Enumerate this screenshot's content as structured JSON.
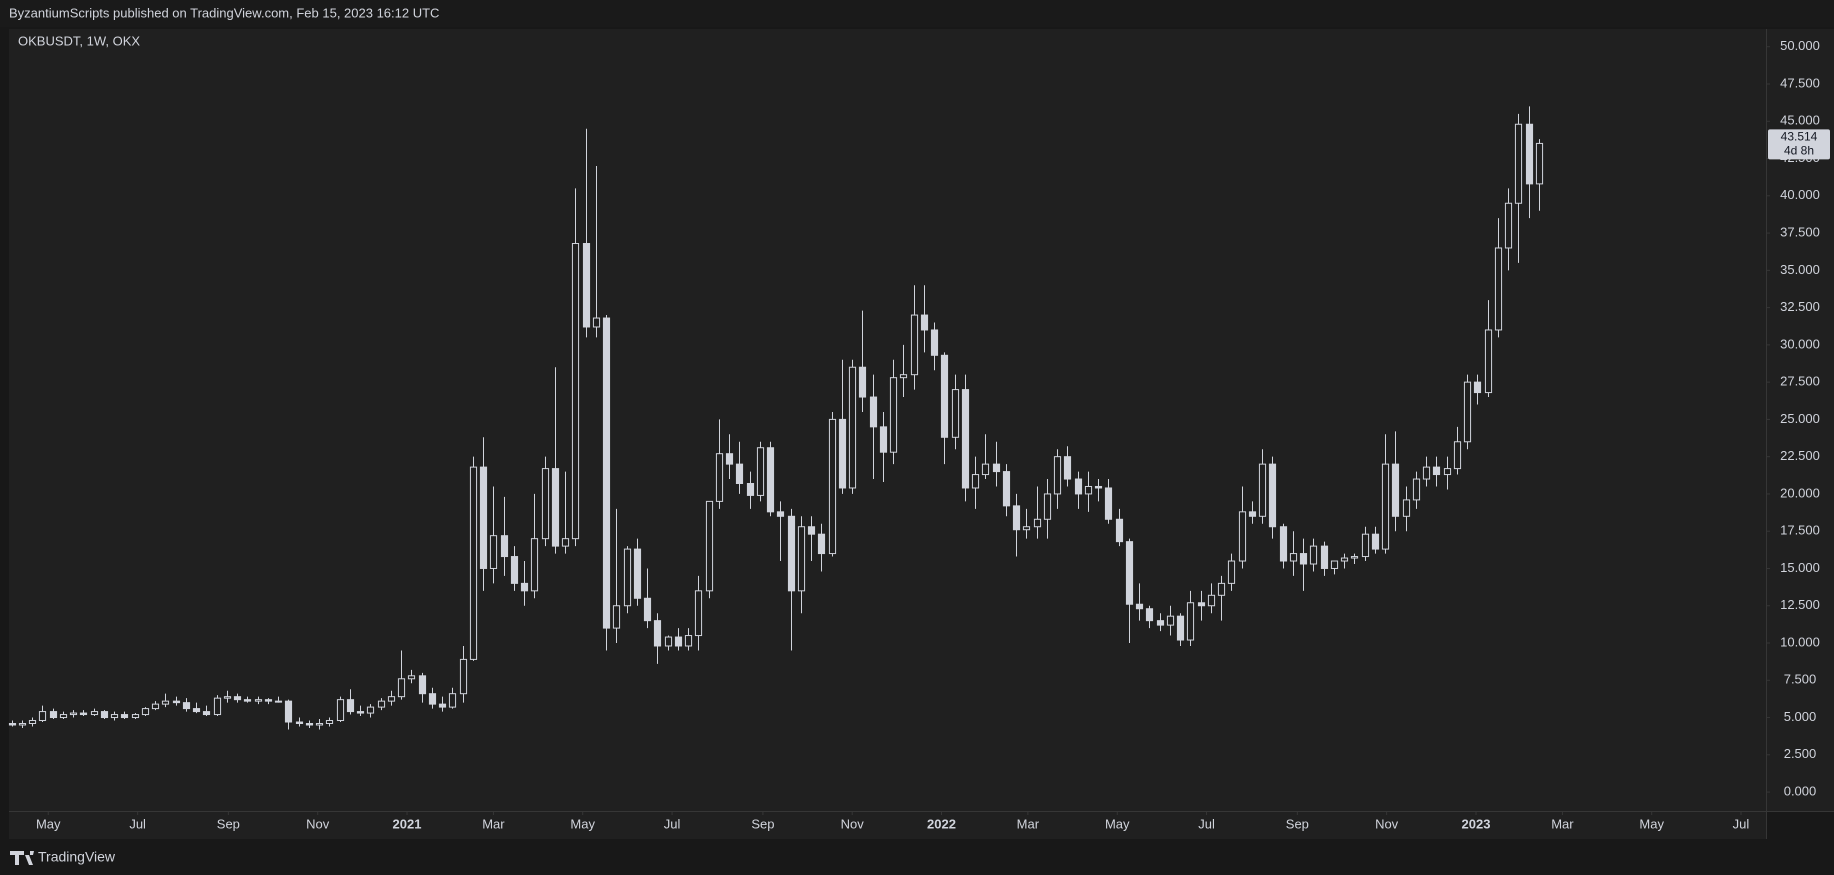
{
  "header": {
    "text": "ByzantiumScripts published on TradingView.com, Feb 15, 2023 16:12 UTC"
  },
  "footer": {
    "brand": "TradingView"
  },
  "chart_data": {
    "type": "candlestick",
    "symbol_label": "OKBUSDT, 1W, OKX",
    "up_color": "#d1d4dc",
    "down_color": "#d1d4dc",
    "hollow_up": true,
    "ylim": [
      -1.27,
      51.19
    ],
    "yticks": [
      {
        "value": 0,
        "label": "0.000"
      },
      {
        "value": 2.5,
        "label": "2.500"
      },
      {
        "value": 5,
        "label": "5.000"
      },
      {
        "value": 7.5,
        "label": "7.500"
      },
      {
        "value": 10,
        "label": "10.000"
      },
      {
        "value": 12.5,
        "label": "12.500"
      },
      {
        "value": 15,
        "label": "15.000"
      },
      {
        "value": 17.5,
        "label": "17.500"
      },
      {
        "value": 20,
        "label": "20.000"
      },
      {
        "value": 22.5,
        "label": "22.500"
      },
      {
        "value": 25,
        "label": "25.000"
      },
      {
        "value": 27.5,
        "label": "27.500"
      },
      {
        "value": 30,
        "label": "30.000"
      },
      {
        "value": 32.5,
        "label": "32.500"
      },
      {
        "value": 35,
        "label": "35.000"
      },
      {
        "value": 37.5,
        "label": "37.500"
      },
      {
        "value": 40,
        "label": "40.000"
      },
      {
        "value": 42.5,
        "label": "42.500"
      },
      {
        "value": 45,
        "label": "45.000"
      },
      {
        "value": 47.5,
        "label": "47.500"
      },
      {
        "value": 50,
        "label": "50.000"
      }
    ],
    "xlim": [
      -0.26,
      171.15
    ],
    "xticks": [
      {
        "value": 3.57,
        "label": "May"
      },
      {
        "value": 12.29,
        "label": "Jul"
      },
      {
        "value": 21.14,
        "label": "Sep"
      },
      {
        "value": 29.86,
        "label": "Nov"
      },
      {
        "value": 38.57,
        "label": "2021"
      },
      {
        "value": 47.0,
        "label": "Mar"
      },
      {
        "value": 55.71,
        "label": "May"
      },
      {
        "value": 64.43,
        "label": "Jul"
      },
      {
        "value": 73.29,
        "label": "Sep"
      },
      {
        "value": 82.0,
        "label": "Nov"
      },
      {
        "value": 90.71,
        "label": "2022"
      },
      {
        "value": 99.14,
        "label": "Mar"
      },
      {
        "value": 107.86,
        "label": "May"
      },
      {
        "value": 116.57,
        "label": "Jul"
      },
      {
        "value": 125.43,
        "label": "Sep"
      },
      {
        "value": 134.14,
        "label": "Nov"
      },
      {
        "value": 142.86,
        "label": "2023"
      },
      {
        "value": 151.29,
        "label": "Mar"
      },
      {
        "value": 160.0,
        "label": "May"
      },
      {
        "value": 168.71,
        "label": "Jul"
      }
    ],
    "countdown": "4d 8h",
    "open": [
      4.6,
      4.5,
      4.6,
      4.8,
      5.4,
      5.0,
      5.2,
      5.3,
      5.2,
      5.4,
      5.0,
      5.2,
      5.0,
      5.2,
      5.6,
      5.9,
      6.1,
      6.0,
      5.6,
      5.4,
      5.2,
      6.3,
      6.4,
      6.2,
      6.1,
      6.2,
      6.1,
      6.1,
      4.7,
      4.6,
      4.5,
      4.6,
      4.8,
      6.2,
      5.4,
      5.3,
      5.7,
      6.1,
      6.4,
      7.6,
      7.8,
      6.6,
      5.9,
      5.7,
      6.6,
      8.9,
      21.8,
      15.0,
      17.2,
      15.8,
      14.0,
      13.5,
      17.0,
      21.7,
      16.5,
      17.0,
      36.8,
      31.2,
      31.8,
      11.0,
      12.5,
      16.3,
      13.0,
      11.5,
      9.8,
      10.4,
      9.8,
      10.5,
      13.5,
      19.5,
      22.7,
      22.0,
      20.7,
      19.9,
      23.1,
      18.8,
      18.5,
      13.5,
      17.8,
      17.3,
      16.0,
      25.0,
      20.4,
      28.5,
      26.5,
      24.5,
      22.8,
      27.8,
      28.0,
      32.0,
      31.0,
      29.3,
      23.8,
      27.0,
      20.4,
      21.3,
      22.0,
      21.5,
      19.2,
      17.6,
      17.8,
      18.3,
      20.0,
      22.5,
      21.0,
      20.0,
      20.5,
      20.4,
      18.3,
      16.8,
      12.6,
      12.3,
      11.5,
      11.2,
      11.8,
      10.2,
      12.7,
      12.5,
      13.2,
      14.0,
      15.5,
      18.8,
      18.5,
      22.0,
      17.8,
      15.5,
      16.0,
      15.3,
      16.5,
      15.0,
      15.5,
      15.7,
      15.8,
      17.3,
      16.3,
      22.0,
      18.5,
      19.6,
      21.0,
      21.8,
      21.3,
      21.7,
      23.5,
      27.5,
      26.8,
      31.0,
      36.5,
      39.5,
      44.8,
      40.8
    ],
    "high": [
      4.8,
      4.8,
      5.0,
      5.8,
      5.6,
      5.4,
      5.5,
      5.5,
      5.6,
      5.5,
      5.4,
      5.4,
      5.3,
      5.7,
      6.1,
      6.6,
      6.4,
      6.3,
      6.0,
      5.8,
      6.5,
      6.8,
      6.6,
      6.4,
      6.4,
      6.3,
      6.4,
      6.2,
      5.0,
      4.8,
      4.9,
      5.0,
      6.4,
      6.9,
      5.8,
      5.9,
      6.3,
      6.8,
      9.5,
      8.2,
      8.0,
      7.0,
      6.4,
      7.0,
      9.8,
      22.5,
      23.8,
      20.5,
      19.8,
      16.5,
      15.5,
      20.0,
      22.5,
      28.5,
      21.5,
      40.5,
      44.5,
      42.0,
      32.0,
      19.0,
      16.5,
      17.0,
      15.0,
      12.0,
      10.5,
      11.0,
      11.0,
      14.5,
      19.5,
      25.0,
      24.0,
      23.5,
      21.5,
      23.5,
      23.5,
      19.5,
      19.0,
      18.5,
      18.5,
      18.0,
      25.5,
      29.0,
      29.0,
      32.3,
      28.0,
      25.5,
      29.0,
      30.0,
      34.0,
      34.0,
      31.5,
      29.5,
      28.0,
      28.0,
      22.5,
      24.0,
      23.5,
      22.0,
      20.0,
      19.0,
      20.5,
      21.0,
      23.0,
      23.2,
      21.5,
      21.5,
      21.0,
      21.0,
      19.0,
      17.0,
      14.0,
      12.5,
      12.0,
      12.5,
      12.0,
      13.5,
      13.5,
      14.0,
      14.5,
      16.0,
      20.5,
      19.5,
      23.0,
      22.5,
      18.0,
      17.5,
      17.0,
      17.0,
      16.8,
      15.5,
      16.0,
      16.0,
      17.8,
      17.8,
      24.0,
      24.2,
      20.5,
      21.5,
      22.5,
      22.5,
      22.5,
      24.5,
      28.0,
      28.0,
      33.0,
      38.5,
      40.5,
      45.5,
      46.0,
      43.8
    ],
    "low": [
      4.4,
      4.3,
      4.4,
      4.7,
      4.9,
      4.9,
      5.0,
      5.1,
      5.1,
      4.9,
      4.8,
      4.9,
      4.9,
      5.1,
      5.5,
      5.7,
      5.8,
      5.4,
      5.3,
      5.1,
      5.1,
      6.0,
      6.0,
      6.0,
      5.9,
      5.9,
      6.0,
      4.2,
      4.4,
      4.3,
      4.2,
      4.4,
      4.7,
      5.2,
      5.1,
      5.0,
      5.5,
      5.8,
      6.2,
      7.3,
      6.0,
      5.6,
      5.4,
      5.6,
      6.0,
      8.8,
      13.5,
      14.0,
      14.5,
      13.5,
      12.5,
      13.0,
      16.5,
      16.0,
      16.0,
      16.5,
      30.5,
      30.5,
      9.5,
      10.0,
      12.0,
      12.5,
      11.0,
      8.6,
      9.5,
      9.5,
      9.5,
      9.5,
      13.0,
      19.0,
      21.0,
      20.0,
      19.0,
      19.5,
      18.5,
      15.5,
      9.5,
      12.0,
      15.5,
      14.8,
      15.8,
      20.0,
      20.0,
      25.5,
      21.0,
      20.8,
      22.0,
      26.5,
      27.0,
      29.5,
      28.3,
      22.0,
      23.0,
      19.5,
      19.0,
      21.0,
      20.5,
      18.5,
      15.8,
      17.0,
      17.0,
      17.0,
      19.0,
      20.5,
      19.0,
      18.8,
      19.5,
      18.0,
      16.5,
      10.0,
      11.5,
      11.0,
      10.8,
      10.5,
      9.8,
      9.8,
      11.5,
      12.0,
      11.5,
      13.5,
      15.0,
      18.0,
      18.0,
      17.0,
      15.0,
      14.5,
      13.5,
      14.8,
      14.5,
      14.6,
      15.0,
      15.3,
      15.5,
      16.0,
      16.0,
      17.5,
      17.5,
      19.0,
      20.5,
      20.5,
      20.3,
      21.3,
      23.0,
      26.0,
      26.5,
      30.5,
      35.0,
      35.5,
      38.5,
      39.0
    ],
    "close": [
      4.5,
      4.6,
      4.8,
      5.4,
      5.0,
      5.2,
      5.3,
      5.2,
      5.4,
      5.0,
      5.2,
      5.0,
      5.2,
      5.6,
      5.9,
      6.1,
      6.0,
      5.6,
      5.4,
      5.2,
      6.3,
      6.4,
      6.2,
      6.1,
      6.2,
      6.1,
      6.1,
      4.7,
      4.6,
      4.5,
      4.6,
      4.8,
      6.2,
      5.4,
      5.3,
      5.7,
      6.1,
      6.4,
      7.6,
      7.8,
      6.6,
      5.9,
      5.7,
      6.6,
      8.9,
      21.8,
      15.0,
      17.2,
      15.8,
      14.0,
      13.5,
      17.0,
      21.7,
      16.5,
      17.0,
      36.8,
      31.2,
      31.8,
      11.0,
      12.5,
      16.3,
      13.0,
      11.5,
      9.8,
      10.4,
      9.8,
      10.5,
      13.5,
      19.5,
      22.7,
      22.0,
      20.7,
      19.9,
      23.1,
      18.8,
      18.5,
      13.5,
      17.8,
      17.3,
      16.0,
      25.0,
      20.4,
      28.5,
      26.5,
      24.5,
      22.8,
      27.8,
      28.0,
      32.0,
      31.0,
      29.3,
      23.8,
      27.0,
      20.4,
      21.3,
      22.0,
      21.5,
      19.2,
      17.6,
      17.8,
      18.3,
      20.0,
      22.5,
      21.0,
      20.0,
      20.5,
      20.4,
      18.3,
      16.8,
      12.6,
      12.3,
      11.5,
      11.2,
      11.8,
      10.2,
      12.7,
      12.5,
      13.2,
      14.0,
      15.5,
      18.8,
      18.5,
      22.0,
      17.8,
      15.5,
      16.0,
      15.3,
      16.5,
      15.0,
      15.5,
      15.7,
      15.8,
      17.3,
      16.3,
      22.0,
      18.5,
      19.6,
      21.0,
      21.8,
      21.3,
      21.7,
      23.5,
      27.5,
      26.8,
      31.0,
      36.5,
      39.5,
      44.8,
      40.8,
      43.514
    ]
  }
}
